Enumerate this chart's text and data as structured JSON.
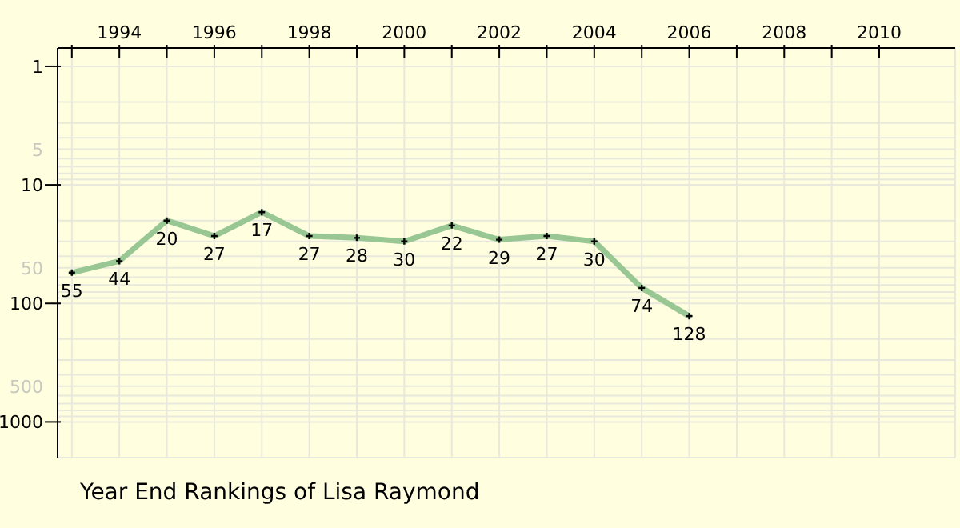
{
  "chart_data": {
    "type": "line",
    "title": "Year End Rankings of Lisa Raymond",
    "x": [
      1993,
      1994,
      1995,
      1996,
      1997,
      1998,
      1999,
      2000,
      2001,
      2002,
      2003,
      2004,
      2005,
      2006
    ],
    "series": [
      {
        "color": "#99c794",
        "values": [
          55,
          44,
          20,
          27,
          17,
          27,
          28,
          30,
          22,
          29,
          27,
          30,
          74,
          128
        ]
      }
    ],
    "xlim": [
      1992.7,
      2011.6
    ],
    "xticks": [
      {
        "value": 1993,
        "label": null
      },
      1994,
      {
        "value": 1995,
        "label": null
      },
      1996,
      {
        "value": 1997,
        "label": null
      },
      1998,
      {
        "value": 1999,
        "label": null
      },
      2000,
      {
        "value": 2001,
        "label": null
      },
      2002,
      {
        "value": 2003,
        "label": null
      },
      2004,
      {
        "value": 2005,
        "label": null
      },
      2006,
      {
        "value": 2007,
        "label": null
      },
      2008,
      {
        "value": 2009,
        "label": null
      },
      2010
    ],
    "ylim": [
      2000,
      0.7
    ],
    "yticks": [
      1,
      {
        "value": 2,
        "label": null
      },
      {
        "value": 3,
        "label": null
      },
      {
        "value": 4,
        "label": null
      },
      5,
      {
        "value": 6,
        "label": null
      },
      {
        "value": 7,
        "label": null
      },
      {
        "value": 8,
        "label": null
      },
      {
        "value": 9,
        "label": null
      },
      10,
      {
        "value": 20,
        "label": null
      },
      {
        "value": 30,
        "label": null
      },
      {
        "value": 40,
        "label": null
      },
      50,
      {
        "value": 60,
        "label": null
      },
      {
        "value": 70,
        "label": null
      },
      {
        "value": 80,
        "label": null
      },
      {
        "value": 90,
        "label": null
      },
      100,
      {
        "value": 200,
        "label": null
      },
      {
        "value": 300,
        "label": null
      },
      {
        "value": 400,
        "label": null
      },
      500,
      {
        "value": 600,
        "label": null
      },
      {
        "value": 700,
        "label": null
      },
      {
        "value": 800,
        "label": null
      },
      {
        "value": 900,
        "label": null
      },
      1000
    ],
    "log": "y",
    "grid": true,
    "legend": false,
    "data_labels": true,
    "marker": "cross",
    "line_style": "solid"
  }
}
